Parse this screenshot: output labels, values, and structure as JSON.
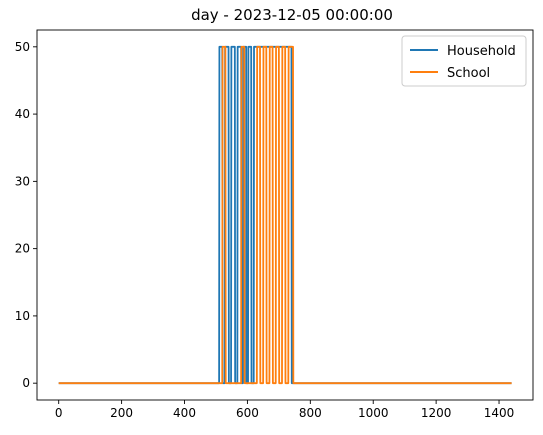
{
  "chart_data": {
    "type": "line",
    "title": "day - 2023-12-05 00:00:00",
    "xlabel": "",
    "ylabel": "",
    "xlim": [
      -69,
      1508
    ],
    "ylim": [
      -2.5,
      52.5
    ],
    "xticks": [
      0,
      200,
      400,
      600,
      800,
      1000,
      1200,
      1400
    ],
    "yticks": [
      0,
      10,
      20,
      30,
      40,
      50
    ],
    "grid": false,
    "legend_position": "top-right",
    "series": [
      {
        "name": "Household",
        "color": "#1f77b4",
        "x": [
          0,
          510,
          511,
          520,
          521,
          528,
          529,
          540,
          541,
          548,
          549,
          560,
          561,
          568,
          569,
          580,
          581,
          586,
          587,
          596,
          597,
          602,
          603,
          612,
          613,
          620,
          621,
          740,
          741,
          1440
        ],
        "y": [
          0,
          0,
          50,
          50,
          0,
          0,
          50,
          50,
          0,
          0,
          50,
          50,
          0,
          0,
          50,
          50,
          0,
          0,
          50,
          50,
          0,
          0,
          50,
          50,
          0,
          0,
          50,
          50,
          0,
          0
        ]
      },
      {
        "name": "School",
        "color": "#ff7f0e",
        "x": [
          0,
          520,
          521,
          530,
          531,
          580,
          581,
          590,
          591,
          630,
          631,
          640,
          641,
          650,
          651,
          660,
          661,
          670,
          671,
          680,
          681,
          690,
          691,
          700,
          701,
          710,
          711,
          720,
          721,
          730,
          731,
          745,
          746,
          1440
        ],
        "y": [
          0,
          0,
          50,
          50,
          0,
          0,
          50,
          50,
          0,
          0,
          50,
          50,
          0,
          0,
          50,
          50,
          0,
          0,
          50,
          50,
          0,
          0,
          50,
          50,
          0,
          0,
          50,
          50,
          0,
          0,
          50,
          50,
          0,
          0
        ]
      }
    ]
  }
}
